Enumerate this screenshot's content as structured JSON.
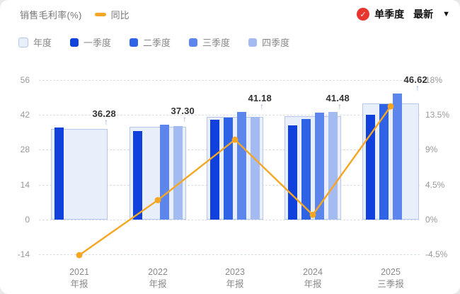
{
  "header": {
    "title": "销售毛利率(%)",
    "line_legend": "同比",
    "controls": {
      "checked_label": "单季度",
      "latest_label": "最新",
      "check_icon": "✓",
      "caret_icon": "▼",
      "badge_color": "#e8352e"
    }
  },
  "legend": {
    "items": [
      {
        "label": "年度",
        "color_key": "annual"
      },
      {
        "label": "一季度",
        "color_key": "q1"
      },
      {
        "label": "二季度",
        "color_key": "q2"
      },
      {
        "label": "三季度",
        "color_key": "q3"
      },
      {
        "label": "四季度",
        "color_key": "q4"
      }
    ]
  },
  "chart_data": {
    "type": "bar",
    "title": "销售毛利率(%)",
    "left_axis": {
      "ticks": [
        56,
        42,
        28,
        14,
        0,
        -14
      ],
      "range": [
        -14,
        56
      ]
    },
    "right_axis": {
      "ticks": [
        "18%",
        "13.5%",
        "9%",
        "4.5%",
        "0%",
        "-4.5%"
      ],
      "tick_values": [
        18,
        13.5,
        9,
        4.5,
        0,
        -4.5
      ],
      "range": [
        -4.5,
        18
      ]
    },
    "groups": [
      {
        "x_line1": "2021",
        "x_line2": "年报",
        "annual": 36.28,
        "annual_label": "36.28",
        "quarters": [
          {
            "q": 1,
            "v": 37.0
          }
        ]
      },
      {
        "x_line1": "2022",
        "x_line2": "年报",
        "annual": 37.3,
        "annual_label": "37.30",
        "quarters": [
          {
            "q": 1,
            "v": 35.6
          },
          {
            "q": 3,
            "v": 38.1
          },
          {
            "q": 4,
            "v": 37.6
          }
        ]
      },
      {
        "x_line1": "2023",
        "x_line2": "年报",
        "annual": 41.18,
        "annual_label": "41.18",
        "quarters": [
          {
            "q": 1,
            "v": 40.0
          },
          {
            "q": 2,
            "v": 41.0
          },
          {
            "q": 3,
            "v": 43.3
          },
          {
            "q": 4,
            "v": 41.3
          }
        ]
      },
      {
        "x_line1": "2024",
        "x_line2": "年报",
        "annual": 41.48,
        "annual_label": "41.48",
        "quarters": [
          {
            "q": 1,
            "v": 37.8
          },
          {
            "q": 2,
            "v": 40.3
          },
          {
            "q": 3,
            "v": 42.9
          },
          {
            "q": 4,
            "v": 43.2
          }
        ]
      },
      {
        "x_line1": "2025",
        "x_line2": "三季报",
        "annual": 46.62,
        "annual_label": "46.62",
        "quarters": [
          {
            "q": 1,
            "v": 42.1
          },
          {
            "q": 2,
            "v": 46.4
          },
          {
            "q": 3,
            "v": 50.6
          }
        ]
      }
    ],
    "yoy_series": {
      "name": "同比",
      "values_pct": [
        -4.6,
        2.5,
        10.3,
        0.6,
        14.6
      ],
      "color": "#f5a623"
    },
    "colors": {
      "annual_fill": "#e8eefa",
      "annual_border": "#b7c7ec",
      "q1": "#1141dc",
      "q2": "#2e63e6",
      "q3": "#5d86ec",
      "q4": "#a4bbf2",
      "grid": "#d9dde5",
      "axis_text": "#999999",
      "value_label": "#333333",
      "arrow": "#9aaed6"
    },
    "legend_position": "top-left",
    "grid": "dashed-horizontal"
  }
}
